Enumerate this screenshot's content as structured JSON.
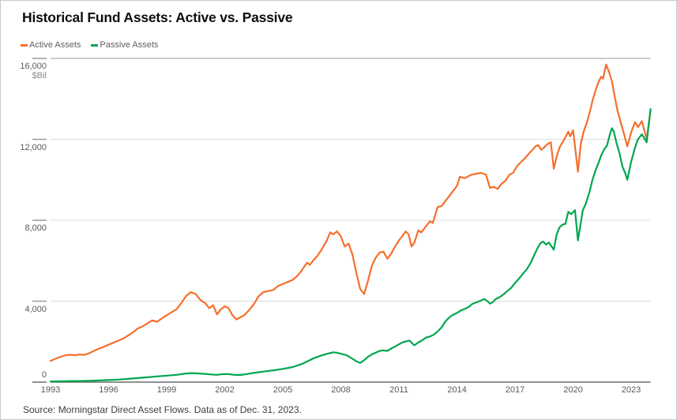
{
  "title": "Historical Fund Assets: Active vs. Passive",
  "source_note": "Source: Morningstar Direct Asset Flows. Data as of Dec. 31, 2023.",
  "legend": {
    "items": [
      {
        "label": "Active Assets",
        "color": "#F56F2C"
      },
      {
        "label": "Passive Assets",
        "color": "#00A651"
      }
    ]
  },
  "chart_data": {
    "type": "line",
    "title": "Historical Fund Assets: Active vs. Passive",
    "xlabel": "",
    "ylabel": "$Bil",
    "y_unit_label": "$Bil",
    "x_range": [
      1993,
      2024
    ],
    "y_range": [
      0,
      16000
    ],
    "grid": true,
    "legend_position": "top-left",
    "y_ticks": [
      {
        "value": 0,
        "label": "0"
      },
      {
        "value": 4000,
        "label": "4,000"
      },
      {
        "value": 8000,
        "label": "8,000"
      },
      {
        "value": 12000,
        "label": "12,000"
      },
      {
        "value": 16000,
        "label": "16,000"
      }
    ],
    "x_ticks": [
      {
        "value": 1993,
        "label": "1993"
      },
      {
        "value": 1996,
        "label": "1996"
      },
      {
        "value": 1999,
        "label": "1999"
      },
      {
        "value": 2002,
        "label": "2002"
      },
      {
        "value": 2005,
        "label": "2005"
      },
      {
        "value": 2008,
        "label": "2008"
      },
      {
        "value": 2011,
        "label": "2011"
      },
      {
        "value": 2014,
        "label": "2014"
      },
      {
        "value": 2017,
        "label": "2017"
      },
      {
        "value": 2020,
        "label": "2020"
      },
      {
        "value": 2023,
        "label": "2023"
      }
    ],
    "series": [
      {
        "name": "Active Assets",
        "color": "#F56F2C",
        "points": [
          [
            1993.0,
            1050
          ],
          [
            1993.25,
            1150
          ],
          [
            1993.5,
            1250
          ],
          [
            1993.75,
            1320
          ],
          [
            1994.0,
            1350
          ],
          [
            1994.25,
            1330
          ],
          [
            1994.5,
            1360
          ],
          [
            1994.75,
            1350
          ],
          [
            1995.0,
            1430
          ],
          [
            1995.25,
            1550
          ],
          [
            1995.5,
            1650
          ],
          [
            1995.75,
            1750
          ],
          [
            1996.0,
            1850
          ],
          [
            1996.25,
            1950
          ],
          [
            1996.5,
            2050
          ],
          [
            1996.75,
            2150
          ],
          [
            1997.0,
            2300
          ],
          [
            1997.25,
            2450
          ],
          [
            1997.5,
            2650
          ],
          [
            1997.75,
            2750
          ],
          [
            1998.0,
            2900
          ],
          [
            1998.25,
            3050
          ],
          [
            1998.5,
            2980
          ],
          [
            1998.75,
            3150
          ],
          [
            1999.0,
            3300
          ],
          [
            1999.25,
            3450
          ],
          [
            1999.5,
            3600
          ],
          [
            1999.75,
            3900
          ],
          [
            2000.0,
            4250
          ],
          [
            2000.25,
            4450
          ],
          [
            2000.5,
            4350
          ],
          [
            2000.75,
            4050
          ],
          [
            2001.0,
            3900
          ],
          [
            2001.2,
            3650
          ],
          [
            2001.4,
            3800
          ],
          [
            2001.6,
            3350
          ],
          [
            2001.8,
            3600
          ],
          [
            2002.0,
            3750
          ],
          [
            2002.2,
            3650
          ],
          [
            2002.4,
            3300
          ],
          [
            2002.6,
            3100
          ],
          [
            2002.8,
            3200
          ],
          [
            2003.0,
            3300
          ],
          [
            2003.25,
            3550
          ],
          [
            2003.5,
            3850
          ],
          [
            2003.75,
            4250
          ],
          [
            2004.0,
            4450
          ],
          [
            2004.25,
            4500
          ],
          [
            2004.5,
            4550
          ],
          [
            2004.75,
            4750
          ],
          [
            2005.0,
            4850
          ],
          [
            2005.25,
            4950
          ],
          [
            2005.5,
            5050
          ],
          [
            2005.75,
            5250
          ],
          [
            2006.0,
            5550
          ],
          [
            2006.25,
            5900
          ],
          [
            2006.4,
            5800
          ],
          [
            2006.6,
            6050
          ],
          [
            2006.8,
            6250
          ],
          [
            2007.0,
            6550
          ],
          [
            2007.25,
            6950
          ],
          [
            2007.45,
            7400
          ],
          [
            2007.6,
            7300
          ],
          [
            2007.8,
            7450
          ],
          [
            2008.0,
            7200
          ],
          [
            2008.2,
            6700
          ],
          [
            2008.4,
            6850
          ],
          [
            2008.6,
            6300
          ],
          [
            2008.8,
            5400
          ],
          [
            2009.0,
            4600
          ],
          [
            2009.2,
            4350
          ],
          [
            2009.4,
            5000
          ],
          [
            2009.6,
            5750
          ],
          [
            2009.8,
            6150
          ],
          [
            2010.0,
            6400
          ],
          [
            2010.2,
            6450
          ],
          [
            2010.4,
            6100
          ],
          [
            2010.6,
            6350
          ],
          [
            2010.8,
            6700
          ],
          [
            2011.0,
            7000
          ],
          [
            2011.2,
            7250
          ],
          [
            2011.35,
            7450
          ],
          [
            2011.5,
            7300
          ],
          [
            2011.65,
            6700
          ],
          [
            2011.8,
            6900
          ],
          [
            2012.0,
            7500
          ],
          [
            2012.15,
            7400
          ],
          [
            2012.4,
            7700
          ],
          [
            2012.6,
            7950
          ],
          [
            2012.75,
            7870
          ],
          [
            2013.0,
            8650
          ],
          [
            2013.2,
            8700
          ],
          [
            2013.4,
            8950
          ],
          [
            2013.6,
            9200
          ],
          [
            2013.8,
            9450
          ],
          [
            2014.0,
            9700
          ],
          [
            2014.15,
            10150
          ],
          [
            2014.4,
            10080
          ],
          [
            2014.6,
            10180
          ],
          [
            2014.8,
            10270
          ],
          [
            2015.0,
            10300
          ],
          [
            2015.25,
            10340
          ],
          [
            2015.5,
            10250
          ],
          [
            2015.7,
            9600
          ],
          [
            2015.9,
            9650
          ],
          [
            2016.1,
            9550
          ],
          [
            2016.3,
            9800
          ],
          [
            2016.5,
            9950
          ],
          [
            2016.7,
            10240
          ],
          [
            2016.9,
            10350
          ],
          [
            2017.1,
            10660
          ],
          [
            2017.3,
            10880
          ],
          [
            2017.5,
            11050
          ],
          [
            2017.7,
            11280
          ],
          [
            2017.9,
            11480
          ],
          [
            2018.05,
            11650
          ],
          [
            2018.2,
            11720
          ],
          [
            2018.35,
            11480
          ],
          [
            2018.5,
            11600
          ],
          [
            2018.7,
            11780
          ],
          [
            2018.85,
            11850
          ],
          [
            2019.0,
            10550
          ],
          [
            2019.15,
            11150
          ],
          [
            2019.3,
            11600
          ],
          [
            2019.45,
            11850
          ],
          [
            2019.6,
            12100
          ],
          [
            2019.75,
            12380
          ],
          [
            2019.85,
            12150
          ],
          [
            2020.0,
            12450
          ],
          [
            2020.25,
            10400
          ],
          [
            2020.4,
            11800
          ],
          [
            2020.55,
            12400
          ],
          [
            2020.7,
            12800
          ],
          [
            2020.85,
            13300
          ],
          [
            2021.0,
            13900
          ],
          [
            2021.15,
            14400
          ],
          [
            2021.3,
            14800
          ],
          [
            2021.45,
            15100
          ],
          [
            2021.55,
            15000
          ],
          [
            2021.7,
            15700
          ],
          [
            2021.85,
            15350
          ],
          [
            2022.0,
            14900
          ],
          [
            2022.15,
            14100
          ],
          [
            2022.3,
            13400
          ],
          [
            2022.5,
            12700
          ],
          [
            2022.65,
            12200
          ],
          [
            2022.8,
            11650
          ],
          [
            2023.0,
            12350
          ],
          [
            2023.2,
            12850
          ],
          [
            2023.35,
            12600
          ],
          [
            2023.55,
            12900
          ],
          [
            2023.8,
            12000
          ],
          [
            2024.0,
            13400
          ]
        ]
      },
      {
        "name": "Passive Assets",
        "color": "#00A651",
        "points": [
          [
            1993.0,
            30
          ],
          [
            1993.5,
            40
          ],
          [
            1994.0,
            50
          ],
          [
            1994.5,
            55
          ],
          [
            1995.0,
            65
          ],
          [
            1995.5,
            80
          ],
          [
            1996.0,
            100
          ],
          [
            1996.5,
            125
          ],
          [
            1997.0,
            160
          ],
          [
            1997.5,
            200
          ],
          [
            1998.0,
            240
          ],
          [
            1998.5,
            280
          ],
          [
            1999.0,
            320
          ],
          [
            1999.5,
            360
          ],
          [
            2000.0,
            425
          ],
          [
            2000.3,
            445
          ],
          [
            2000.6,
            430
          ],
          [
            2001.0,
            405
          ],
          [
            2001.3,
            380
          ],
          [
            2001.6,
            360
          ],
          [
            2001.9,
            400
          ],
          [
            2002.2,
            395
          ],
          [
            2002.5,
            360
          ],
          [
            2002.8,
            350
          ],
          [
            2003.0,
            380
          ],
          [
            2003.3,
            420
          ],
          [
            2003.6,
            470
          ],
          [
            2004.0,
            520
          ],
          [
            2004.5,
            580
          ],
          [
            2005.0,
            650
          ],
          [
            2005.5,
            740
          ],
          [
            2006.0,
            900
          ],
          [
            2006.3,
            1040
          ],
          [
            2006.6,
            1180
          ],
          [
            2007.0,
            1320
          ],
          [
            2007.3,
            1400
          ],
          [
            2007.6,
            1470
          ],
          [
            2007.8,
            1450
          ],
          [
            2008.0,
            1400
          ],
          [
            2008.3,
            1330
          ],
          [
            2008.6,
            1150
          ],
          [
            2008.8,
            1030
          ],
          [
            2009.0,
            950
          ],
          [
            2009.2,
            1080
          ],
          [
            2009.4,
            1250
          ],
          [
            2009.6,
            1370
          ],
          [
            2009.8,
            1450
          ],
          [
            2010.0,
            1540
          ],
          [
            2010.2,
            1570
          ],
          [
            2010.4,
            1540
          ],
          [
            2010.6,
            1660
          ],
          [
            2010.8,
            1760
          ],
          [
            2011.0,
            1870
          ],
          [
            2011.2,
            1970
          ],
          [
            2011.4,
            2020
          ],
          [
            2011.55,
            2050
          ],
          [
            2011.7,
            1900
          ],
          [
            2011.8,
            1820
          ],
          [
            2012.0,
            1960
          ],
          [
            2012.2,
            2070
          ],
          [
            2012.4,
            2200
          ],
          [
            2012.6,
            2250
          ],
          [
            2012.8,
            2350
          ],
          [
            2013.0,
            2500
          ],
          [
            2013.2,
            2700
          ],
          [
            2013.4,
            3000
          ],
          [
            2013.6,
            3200
          ],
          [
            2013.8,
            3330
          ],
          [
            2014.0,
            3420
          ],
          [
            2014.2,
            3540
          ],
          [
            2014.4,
            3620
          ],
          [
            2014.6,
            3710
          ],
          [
            2014.8,
            3870
          ],
          [
            2015.0,
            3940
          ],
          [
            2015.2,
            4010
          ],
          [
            2015.4,
            4110
          ],
          [
            2015.55,
            4020
          ],
          [
            2015.7,
            3880
          ],
          [
            2015.85,
            3950
          ],
          [
            2016.0,
            4100
          ],
          [
            2016.2,
            4200
          ],
          [
            2016.4,
            4330
          ],
          [
            2016.6,
            4500
          ],
          [
            2016.8,
            4660
          ],
          [
            2017.0,
            4900
          ],
          [
            2017.2,
            5110
          ],
          [
            2017.4,
            5350
          ],
          [
            2017.6,
            5570
          ],
          [
            2017.8,
            5880
          ],
          [
            2018.0,
            6300
          ],
          [
            2018.15,
            6600
          ],
          [
            2018.3,
            6850
          ],
          [
            2018.45,
            6950
          ],
          [
            2018.6,
            6800
          ],
          [
            2018.75,
            6900
          ],
          [
            2019.0,
            6550
          ],
          [
            2019.15,
            7300
          ],
          [
            2019.3,
            7650
          ],
          [
            2019.45,
            7780
          ],
          [
            2019.6,
            7820
          ],
          [
            2019.75,
            8420
          ],
          [
            2019.9,
            8300
          ],
          [
            2020.1,
            8500
          ],
          [
            2020.25,
            7000
          ],
          [
            2020.4,
            7900
          ],
          [
            2020.5,
            8500
          ],
          [
            2020.65,
            8800
          ],
          [
            2020.85,
            9400
          ],
          [
            2021.0,
            10000
          ],
          [
            2021.15,
            10450
          ],
          [
            2021.3,
            10800
          ],
          [
            2021.45,
            11200
          ],
          [
            2021.6,
            11500
          ],
          [
            2021.75,
            11700
          ],
          [
            2021.9,
            12250
          ],
          [
            2022.0,
            12550
          ],
          [
            2022.1,
            12400
          ],
          [
            2022.25,
            11800
          ],
          [
            2022.4,
            11300
          ],
          [
            2022.55,
            10650
          ],
          [
            2022.7,
            10300
          ],
          [
            2022.8,
            10000
          ],
          [
            2023.0,
            10900
          ],
          [
            2023.2,
            11600
          ],
          [
            2023.35,
            12000
          ],
          [
            2023.55,
            12250
          ],
          [
            2023.8,
            11850
          ],
          [
            2024.0,
            13500
          ]
        ]
      }
    ]
  }
}
